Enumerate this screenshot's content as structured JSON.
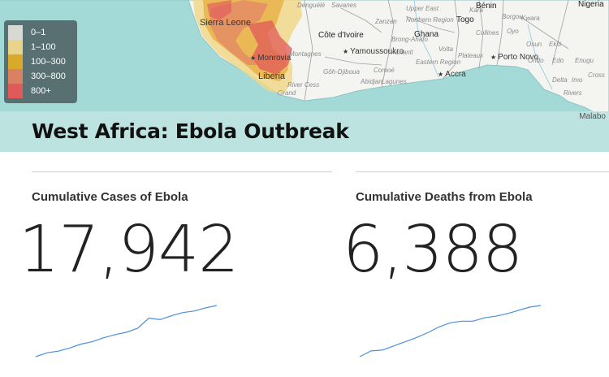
{
  "map": {
    "legend": [
      {
        "label": "0–1",
        "color": "#d9d9d3"
      },
      {
        "label": "1–100",
        "color": "#e8d48b"
      },
      {
        "label": "100–300",
        "color": "#d9a92a"
      },
      {
        "label": "300–800",
        "color": "#d88163"
      },
      {
        "label": "800+",
        "color": "#e05a5a"
      }
    ],
    "places": {
      "sierra_leone": "Sierra Leone",
      "monrovia": "Monrovia",
      "liberia": "Liberia",
      "cote_divoire": "Côte d'Ivoire",
      "ghana": "Ghana",
      "togo": "Togo",
      "benin": "Bénin",
      "nigeria": "Nigeria",
      "yamoussoukro": "Yamoussoukro",
      "accra": "Accra",
      "porto_novo": "Porto Novo",
      "malabo": "Malabo",
      "savanes": "Savanes",
      "zanzan": "Zanzan",
      "denguele": "Denguélé",
      "northern_region": "Northern Region",
      "upper_east": "Upper East",
      "kara": "Kara",
      "borgou": "Borgou",
      "kwara": "Kwara",
      "oyo": "Oyo",
      "ekiti": "Ekiti",
      "edo": "Edo",
      "delta": "Delta",
      "imo": "Imo",
      "rivers": "Rivers",
      "brong_ahafo": "Brong-Ahafo",
      "ashanti": "Ashanti",
      "volta": "Volta",
      "eastern_region": "Eastern Region",
      "plateaux": "Plateaux",
      "collines": "Collines",
      "comoe": "Comoé",
      "lagunes": "Lagunes",
      "abidjan": "Abidjan",
      "gohdjiboua": "Gôh-Djiboua",
      "montagnes": "Montagnes",
      "grand": "Grand",
      "river_cess": "River Cess",
      "osun": "Osun",
      "ondo": "Ondo",
      "cross": "Cross",
      "enugu": "Enugu"
    },
    "colors": {
      "sea": "#a3d9d6",
      "land": "#f4f4f1",
      "border": "#9a9a9a"
    }
  },
  "header": {
    "title": "West Africa: Ebola Outbreak"
  },
  "stats": {
    "cases": {
      "label": "Cumulative Cases of Ebola",
      "value": "17,942",
      "trend": [
        0,
        5,
        7,
        11,
        16,
        19,
        24,
        28,
        31,
        36,
        49,
        47,
        52,
        56,
        58,
        62,
        65
      ]
    },
    "deaths": {
      "label": "Cumulative Deaths from Ebola",
      "value": "6,388",
      "trend": [
        0,
        7,
        8,
        13,
        18,
        23,
        29,
        36,
        41,
        43,
        43,
        47,
        49,
        52,
        56,
        60,
        62
      ]
    },
    "line_color": "#4a90d9"
  }
}
